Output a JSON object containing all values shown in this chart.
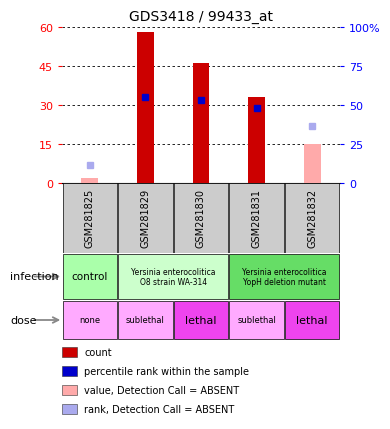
{
  "title": "GDS3418 / 99433_at",
  "samples": [
    "GSM281825",
    "GSM281829",
    "GSM281830",
    "GSM281831",
    "GSM281832"
  ],
  "count_values": [
    null,
    58,
    46,
    33,
    null
  ],
  "count_absent": [
    2.0,
    null,
    null,
    null,
    15.0
  ],
  "percentile_values": [
    null,
    33,
    32,
    29,
    null
  ],
  "percentile_absent": [
    7,
    null,
    null,
    null,
    22
  ],
  "ylim_left": [
    0,
    60
  ],
  "ylim_right": [
    0,
    100
  ],
  "yticks_left": [
    0,
    15,
    30,
    45,
    60
  ],
  "yticks_right": [
    0,
    25,
    50,
    75,
    100
  ],
  "bar_color": "#cc0000",
  "absent_bar_color": "#ffaaaa",
  "percentile_color": "#0000cc",
  "percentile_absent_color": "#aaaaee",
  "sample_bg": "#cccccc",
  "infection_bg_col1": "#aaffaa",
  "infection_bg_col23": "#ccffcc",
  "infection_bg_col45": "#66dd66",
  "dose_bg_none": "#ffaaff",
  "dose_bg_sublethal": "#ffaaff",
  "dose_bg_lethal": "#ee44ee",
  "legend_items": [
    {
      "color": "#cc0000",
      "label": "count"
    },
    {
      "color": "#0000cc",
      "label": "percentile rank within the sample"
    },
    {
      "color": "#ffaaaa",
      "label": "value, Detection Call = ABSENT"
    },
    {
      "color": "#aaaaee",
      "label": "rank, Detection Call = ABSENT"
    }
  ]
}
